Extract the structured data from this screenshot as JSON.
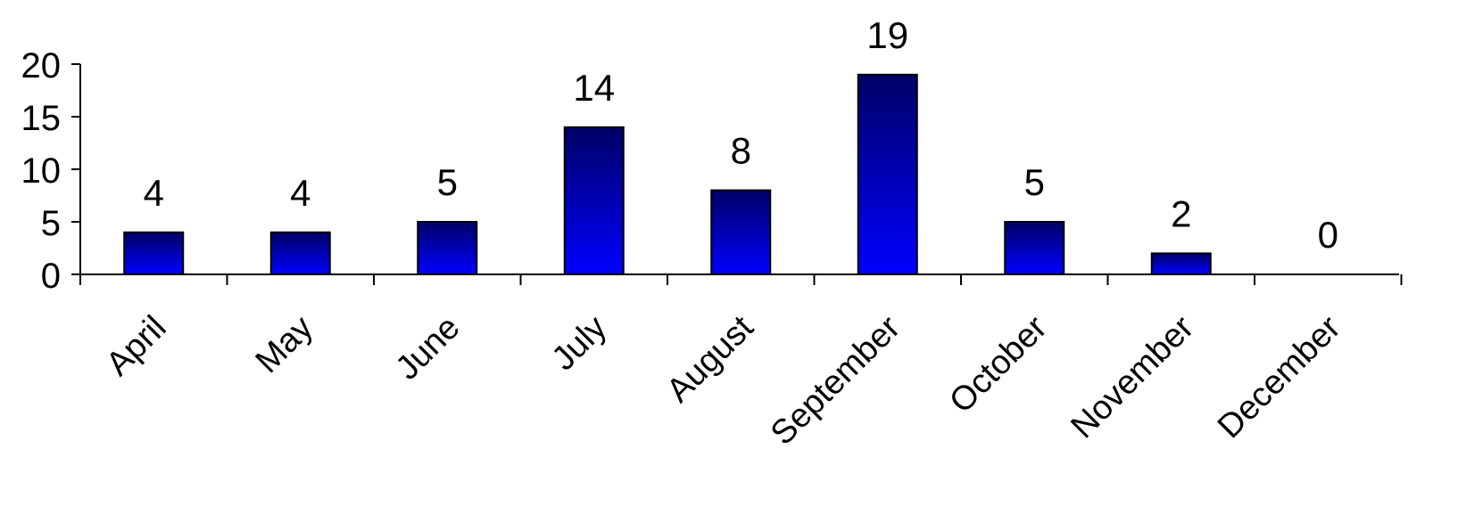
{
  "chart_data": {
    "type": "bar",
    "categories": [
      "April",
      "May",
      "June",
      "July",
      "August",
      "September",
      "October",
      "November",
      "December"
    ],
    "values": [
      4,
      4,
      5,
      14,
      8,
      19,
      5,
      2,
      0
    ],
    "data_labels": [
      "4",
      "4",
      "5",
      "14",
      "8",
      "19",
      "5",
      "2",
      "0"
    ],
    "yticks": [
      0,
      5,
      10,
      15,
      20
    ],
    "ytick_labels": [
      "0",
      "5",
      "10",
      "15",
      "20"
    ],
    "ylim": [
      0,
      20
    ],
    "grid": false,
    "legend": "none",
    "bar_color_top": "#000066",
    "bar_color_bottom": "#0000ff",
    "bar_outline_color": "#000000"
  }
}
